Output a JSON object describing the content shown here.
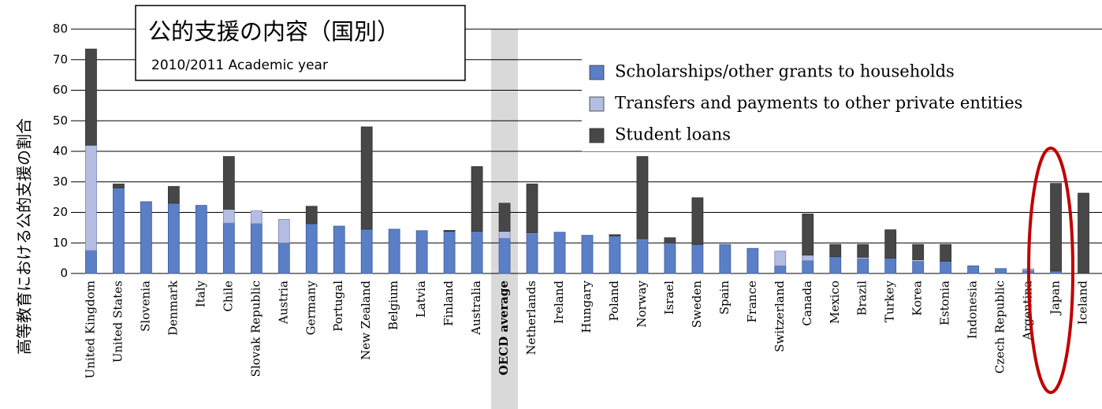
{
  "chart_data": {
    "type": "bar",
    "stacked": true,
    "title": "公的支援の内容（国別）",
    "subtitle": "2010/2011 Academic year",
    "y_label": "高等教育における公的支援の割合",
    "categories": [
      "United Kingdom",
      "United States",
      "Slovenia",
      "Denmark",
      "Italy",
      "Chile",
      "Slovak Republic",
      "Austria",
      "Germany",
      "Portugal",
      "New Zealand",
      "Belgium",
      "Latvia",
      "Finland",
      "Australia",
      "OECD average",
      "Netherlands",
      "Ireland",
      "Hungary",
      "Poland",
      "Norway",
      "Israel",
      "Sweden",
      "Spain",
      "France",
      "Switzerland",
      "Canada",
      "Mexico",
      "Brazil",
      "Turkey",
      "Korea",
      "Estonia",
      "Indonesia",
      "Czech Republic",
      "Argentina",
      "Japan",
      "Iceland"
    ],
    "highlight_category": 15,
    "series": [
      {
        "name": "Scholarships/other grants to households",
        "color": "#5b7fc6",
        "values": [
          7.5,
          28,
          23.5,
          23,
          22.3,
          16.5,
          16.3,
          10,
          16.3,
          15.5,
          14.5,
          14.5,
          14,
          13.8,
          13.8,
          11.5,
          13,
          13.5,
          12.5,
          12.3,
          11,
          10,
          9.5,
          9.5,
          8.2,
          2.5,
          4.2,
          5.5,
          4.8,
          5,
          4,
          4,
          2.5,
          1.6,
          1,
          0.8,
          0
        ]
      },
      {
        "name": "Transfers and payments to other private entities",
        "color": "#b4bde2",
        "values": [
          34.5,
          0,
          0,
          0,
          0,
          4.5,
          4.2,
          7.7,
          0,
          0,
          0,
          0,
          0,
          0,
          0,
          2.3,
          0.3,
          0,
          0,
          0,
          0.3,
          0,
          0,
          0,
          0,
          4.8,
          1.8,
          0,
          0.5,
          0,
          0.5,
          0,
          0,
          0,
          0.5,
          0,
          0
        ]
      },
      {
        "name": "Student loans",
        "color": "#474747",
        "values": [
          31.5,
          1.3,
          0,
          5.5,
          0,
          17.3,
          0,
          0,
          5.7,
          0,
          33.5,
          0,
          0,
          0.3,
          21.2,
          9.2,
          16,
          0,
          0,
          0.4,
          27,
          1.7,
          15.3,
          0,
          0,
          0,
          13.5,
          4,
          4.2,
          9.3,
          5,
          5.5,
          0,
          0,
          0,
          28.7,
          26.3
        ]
      }
    ],
    "ylim": [
      0,
      80
    ],
    "yticks": [
      0,
      10,
      20,
      30,
      40,
      50,
      60,
      70,
      80
    ],
    "grid": true
  }
}
